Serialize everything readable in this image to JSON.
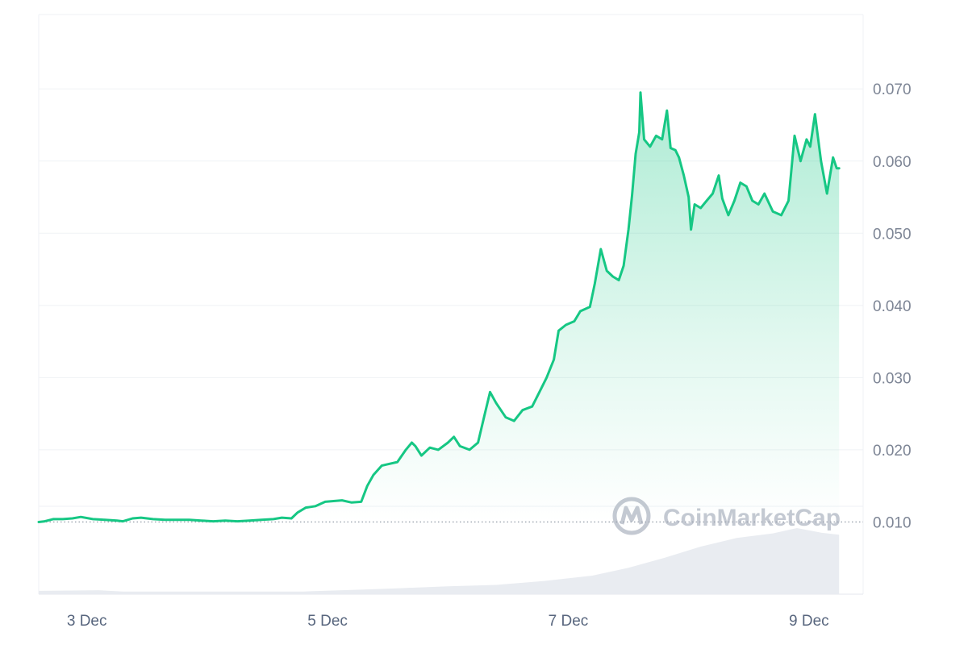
{
  "colors": {
    "up": "#16c784",
    "down": "#ea3943",
    "grid": "#eff2f5",
    "axis_text": "#7d8595",
    "volume": "#e9ecf1",
    "watermark": "#c4c9d2"
  },
  "watermark": {
    "text": "CoinMarketCap",
    "icon": "coinmarketcap-logo-icon"
  },
  "chart_data": {
    "type": "line",
    "x_ticks": [
      "3 Dec",
      "5 Dec",
      "7 Dec",
      "9 Dec"
    ],
    "x_tick_days": [
      3,
      5,
      7,
      9
    ],
    "xlim": [
      2.6,
      9.45
    ],
    "y_ticks": [
      "0.070",
      "0.060",
      "0.050",
      "0.040",
      "0.030",
      "0.020",
      "0.010"
    ],
    "y_tick_values": [
      0.07,
      0.06,
      0.05,
      0.04,
      0.03,
      0.02,
      0.01
    ],
    "ylim": [
      0.0,
      0.0803
    ],
    "baseline": 0.01,
    "grid": true,
    "y_axis_position": "right",
    "x_unit": "Dec day",
    "series": [
      {
        "points": [
          [
            2.6,
            0.01
          ],
          [
            2.65,
            0.0101
          ],
          [
            2.72,
            0.0104
          ],
          [
            2.8,
            0.0104
          ],
          [
            2.88,
            0.0105
          ],
          [
            2.95,
            0.0107
          ],
          [
            3.05,
            0.0104
          ],
          [
            3.15,
            0.0103
          ],
          [
            3.25,
            0.0102
          ],
          [
            3.3,
            0.0101
          ],
          [
            3.38,
            0.0105
          ],
          [
            3.45,
            0.0106
          ],
          [
            3.55,
            0.0104
          ],
          [
            3.65,
            0.0103
          ],
          [
            3.75,
            0.0103
          ],
          [
            3.85,
            0.0103
          ],
          [
            3.95,
            0.0102
          ],
          [
            4.05,
            0.0101
          ],
          [
            4.15,
            0.0102
          ],
          [
            4.25,
            0.0101
          ],
          [
            4.35,
            0.0102
          ],
          [
            4.45,
            0.0103
          ],
          [
            4.55,
            0.0104
          ],
          [
            4.62,
            0.0106
          ],
          [
            4.7,
            0.0105
          ],
          [
            4.75,
            0.0113
          ],
          [
            4.82,
            0.012
          ],
          [
            4.9,
            0.0122
          ],
          [
            4.98,
            0.0128
          ],
          [
            5.05,
            0.0129
          ],
          [
            5.12,
            0.013
          ],
          [
            5.2,
            0.0127
          ],
          [
            5.28,
            0.0128
          ],
          [
            5.33,
            0.015
          ],
          [
            5.38,
            0.0165
          ],
          [
            5.45,
            0.0178
          ],
          [
            5.5,
            0.018
          ],
          [
            5.58,
            0.0183
          ],
          [
            5.65,
            0.02
          ],
          [
            5.7,
            0.021
          ],
          [
            5.73,
            0.0205
          ],
          [
            5.78,
            0.0192
          ],
          [
            5.85,
            0.0203
          ],
          [
            5.92,
            0.02
          ],
          [
            6.0,
            0.021
          ],
          [
            6.05,
            0.0218
          ],
          [
            6.1,
            0.0205
          ],
          [
            6.18,
            0.02
          ],
          [
            6.25,
            0.021
          ],
          [
            6.3,
            0.0245
          ],
          [
            6.35,
            0.028
          ],
          [
            6.4,
            0.0265
          ],
          [
            6.48,
            0.0245
          ],
          [
            6.55,
            0.024
          ],
          [
            6.62,
            0.0255
          ],
          [
            6.7,
            0.026
          ],
          [
            6.76,
            0.028
          ],
          [
            6.82,
            0.03
          ],
          [
            6.88,
            0.0325
          ],
          [
            6.92,
            0.0365
          ],
          [
            6.98,
            0.0373
          ],
          [
            7.05,
            0.0378
          ],
          [
            7.1,
            0.0392
          ],
          [
            7.18,
            0.0398
          ],
          [
            7.22,
            0.043
          ],
          [
            7.27,
            0.0478
          ],
          [
            7.32,
            0.0448
          ],
          [
            7.37,
            0.044
          ],
          [
            7.42,
            0.0435
          ],
          [
            7.46,
            0.0455
          ],
          [
            7.5,
            0.0505
          ],
          [
            7.53,
            0.0552
          ],
          [
            7.56,
            0.061
          ],
          [
            7.59,
            0.064
          ],
          [
            7.6,
            0.0695
          ],
          [
            7.63,
            0.063
          ],
          [
            7.68,
            0.062
          ],
          [
            7.73,
            0.0635
          ],
          [
            7.78,
            0.063
          ],
          [
            7.82,
            0.067
          ],
          [
            7.85,
            0.0618
          ],
          [
            7.89,
            0.0615
          ],
          [
            7.92,
            0.0605
          ],
          [
            7.96,
            0.058
          ],
          [
            8.0,
            0.055
          ],
          [
            8.02,
            0.0505
          ],
          [
            8.05,
            0.054
          ],
          [
            8.1,
            0.0535
          ],
          [
            8.15,
            0.0545
          ],
          [
            8.2,
            0.0555
          ],
          [
            8.25,
            0.058
          ],
          [
            8.28,
            0.0548
          ],
          [
            8.33,
            0.0525
          ],
          [
            8.38,
            0.0545
          ],
          [
            8.43,
            0.057
          ],
          [
            8.48,
            0.0565
          ],
          [
            8.53,
            0.0545
          ],
          [
            8.58,
            0.054
          ],
          [
            8.63,
            0.0555
          ],
          [
            8.7,
            0.053
          ],
          [
            8.77,
            0.0525
          ],
          [
            8.83,
            0.0545
          ],
          [
            8.88,
            0.0635
          ],
          [
            8.93,
            0.06
          ],
          [
            8.98,
            0.063
          ],
          [
            9.01,
            0.062
          ],
          [
            9.05,
            0.0665
          ],
          [
            9.1,
            0.06
          ],
          [
            9.15,
            0.0555
          ],
          [
            9.2,
            0.0605
          ],
          [
            9.23,
            0.059
          ],
          [
            9.25,
            0.059
          ]
        ]
      }
    ],
    "volume": [
      [
        2.6,
        0.05
      ],
      [
        3.1,
        0.06
      ],
      [
        3.3,
        0.04
      ],
      [
        4.8,
        0.04
      ],
      [
        5.3,
        0.07
      ],
      [
        5.6,
        0.09
      ],
      [
        6.0,
        0.12
      ],
      [
        6.4,
        0.14
      ],
      [
        6.8,
        0.2
      ],
      [
        7.2,
        0.28
      ],
      [
        7.5,
        0.4
      ],
      [
        7.8,
        0.55
      ],
      [
        8.1,
        0.72
      ],
      [
        8.4,
        0.85
      ],
      [
        8.7,
        0.92
      ],
      [
        8.9,
        1.0
      ],
      [
        9.1,
        0.93
      ],
      [
        9.25,
        0.9
      ]
    ]
  }
}
